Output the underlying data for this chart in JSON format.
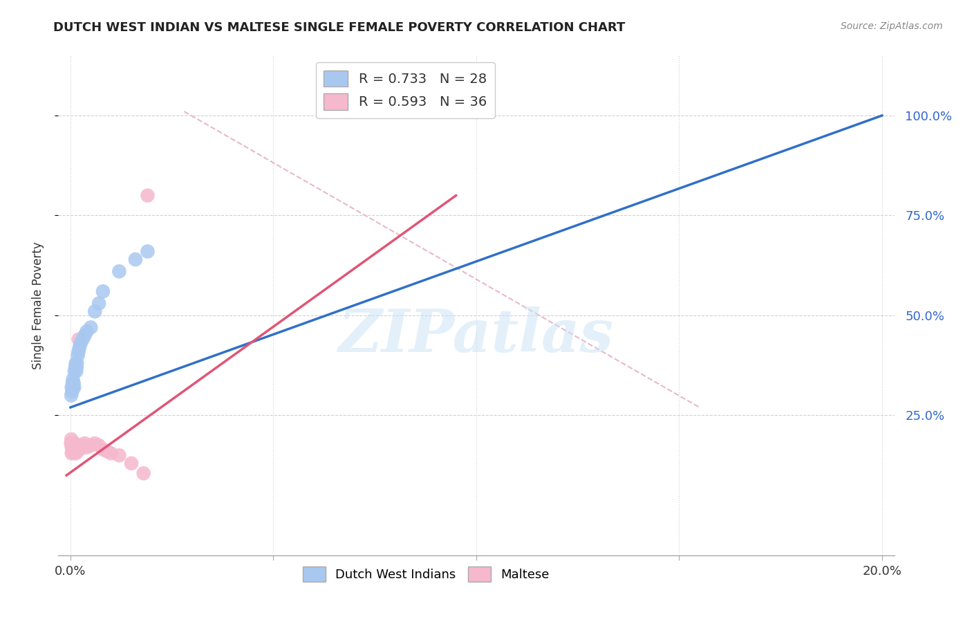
{
  "title": "DUTCH WEST INDIAN VS MALTESE SINGLE FEMALE POVERTY CORRELATION CHART",
  "source": "Source: ZipAtlas.com",
  "ylabel": "Single Female Poverty",
  "watermark": "ZIPatlas",
  "blue_color": "#a8c8f0",
  "pink_color": "#f5b8cc",
  "blue_line_color": "#3070c8",
  "pink_line_color": "#e05575",
  "diag_line_color": "#e8b8c8",
  "legend_color1": "#a8c8f0",
  "legend_color2": "#f5b8cc",
  "blue_scatter_x": [
    0.0002,
    0.0003,
    0.0004,
    0.0005,
    0.0006,
    0.0007,
    0.0008,
    0.0009,
    0.001,
    0.0012,
    0.0013,
    0.0014,
    0.0015,
    0.0016,
    0.0018,
    0.002,
    0.0022,
    0.0025,
    0.003,
    0.0035,
    0.004,
    0.005,
    0.006,
    0.007,
    0.008,
    0.012,
    0.016,
    0.019
  ],
  "blue_scatter_y": [
    0.3,
    0.32,
    0.31,
    0.33,
    0.34,
    0.32,
    0.33,
    0.32,
    0.36,
    0.37,
    0.38,
    0.36,
    0.37,
    0.38,
    0.4,
    0.41,
    0.42,
    0.43,
    0.44,
    0.45,
    0.46,
    0.47,
    0.51,
    0.53,
    0.56,
    0.61,
    0.64,
    0.66
  ],
  "pink_scatter_x": [
    0.0001,
    0.0002,
    0.0003,
    0.0003,
    0.0004,
    0.0005,
    0.0006,
    0.0007,
    0.0008,
    0.0009,
    0.001,
    0.0011,
    0.0012,
    0.0013,
    0.0014,
    0.0015,
    0.0016,
    0.0017,
    0.0018,
    0.002,
    0.0021,
    0.0022,
    0.003,
    0.0035,
    0.004,
    0.005,
    0.006,
    0.007,
    0.008,
    0.009,
    0.01,
    0.012,
    0.015,
    0.018,
    0.019,
    0.002
  ],
  "pink_scatter_y": [
    0.18,
    0.19,
    0.155,
    0.17,
    0.16,
    0.175,
    0.165,
    0.16,
    0.17,
    0.165,
    0.18,
    0.175,
    0.16,
    0.155,
    0.17,
    0.165,
    0.175,
    0.16,
    0.165,
    0.17,
    0.175,
    0.165,
    0.175,
    0.18,
    0.17,
    0.175,
    0.18,
    0.175,
    0.165,
    0.16,
    0.155,
    0.15,
    0.13,
    0.105,
    0.8,
    0.44
  ],
  "blue_line_x": [
    0.0,
    0.2
  ],
  "blue_line_y": [
    0.27,
    1.0
  ],
  "pink_line_x": [
    -0.001,
    0.095
  ],
  "pink_line_y": [
    0.1,
    0.8
  ],
  "diag_line_x": [
    0.028,
    0.155
  ],
  "diag_line_y": [
    1.01,
    0.27
  ],
  "xmin": -0.003,
  "xmax": 0.203,
  "ymin": -0.1,
  "ymax": 1.15,
  "xtick_positions": [
    0.0,
    0.05,
    0.1,
    0.15,
    0.2
  ],
  "xtick_labels": [
    "0.0%",
    "",
    "",
    "",
    "20.0%"
  ],
  "ytick_positions": [
    0.25,
    0.5,
    0.75,
    1.0
  ],
  "ytick_labels": [
    "25.0%",
    "50.0%",
    "75.0%",
    "100.0%"
  ]
}
